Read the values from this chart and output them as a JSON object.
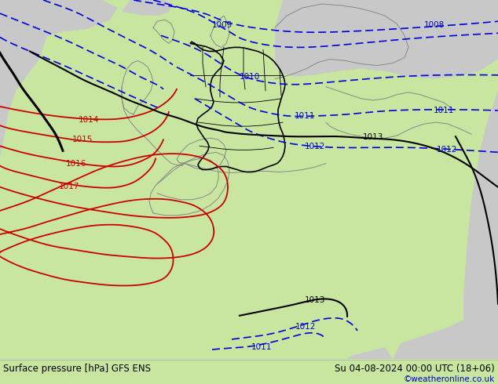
{
  "title_left": "Surface pressure [hPa] GFS ENS",
  "title_right": "Su 04-08-2024 00:00 UTC (18+06)",
  "watermark": "©weatheronline.co.uk",
  "bg_land_green": "#c8e6a0",
  "bg_sea_gray": "#c8c8c8",
  "border_color": "#555555",
  "contour_blue_color": "#0000dd",
  "contour_red_color": "#cc0000",
  "contour_black_color": "#000000",
  "bottom_bar_color": "#c8e6a0",
  "text_color_left": "#000000",
  "text_color_right": "#000000",
  "watermark_color": "#0000cc",
  "figsize": [
    6.34,
    4.9
  ],
  "dpi": 100
}
